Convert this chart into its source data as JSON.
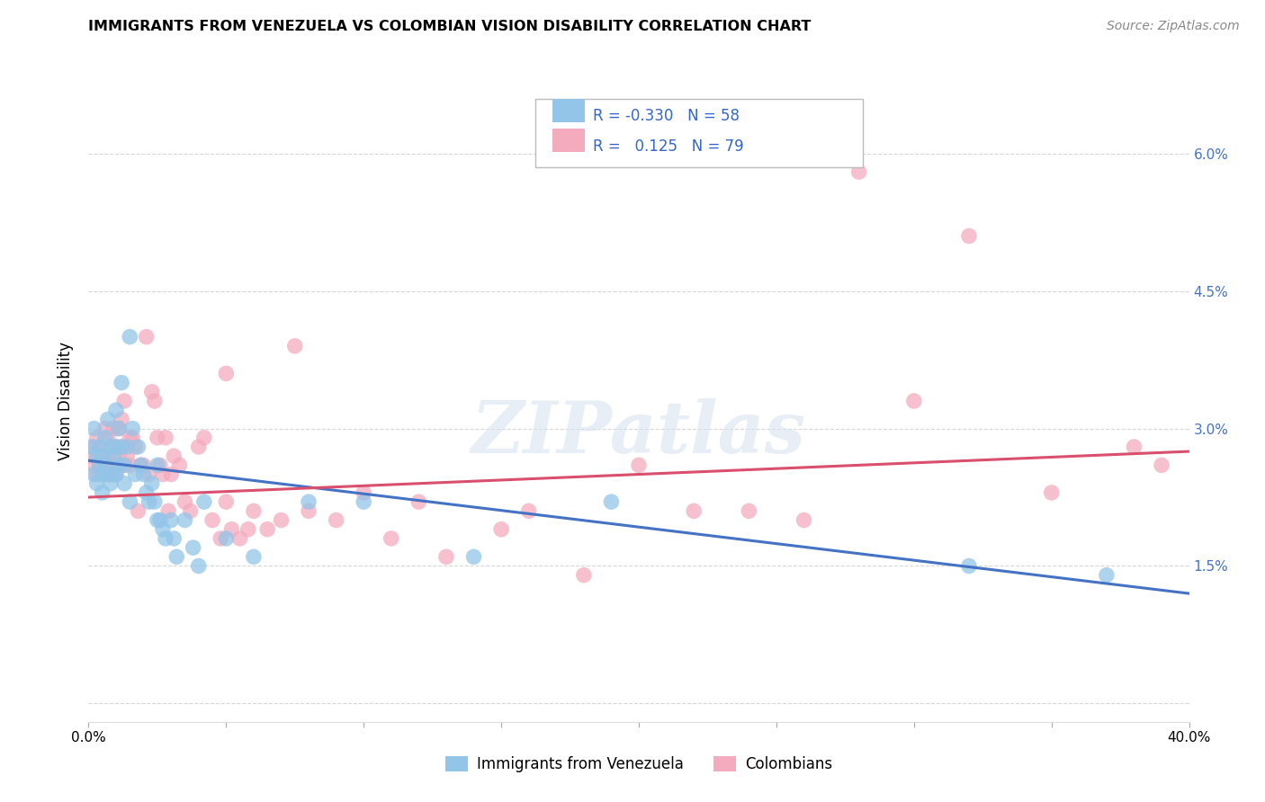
{
  "title": "IMMIGRANTS FROM VENEZUELA VS COLOMBIAN VISION DISABILITY CORRELATION CHART",
  "source": "Source: ZipAtlas.com",
  "ylabel": "Vision Disability",
  "ytick_labels": [
    "",
    "1.5%",
    "3.0%",
    "4.5%",
    "6.0%"
  ],
  "ytick_values": [
    0.0,
    0.015,
    0.03,
    0.045,
    0.06
  ],
  "xlim": [
    0.0,
    0.4
  ],
  "ylim": [
    -0.002,
    0.068
  ],
  "color_blue": "#92C5E8",
  "color_pink": "#F4ABBE",
  "color_blue_line": "#4472C4",
  "color_pink_line": "#D94F6E",
  "background_color": "#FFFFFF",
  "grid_color": "#CCCCCC",
  "watermark_text": "ZIPatlas",
  "venezuela_x": [
    0.001,
    0.002,
    0.002,
    0.003,
    0.003,
    0.004,
    0.004,
    0.005,
    0.005,
    0.005,
    0.006,
    0.006,
    0.007,
    0.007,
    0.008,
    0.008,
    0.009,
    0.009,
    0.01,
    0.01,
    0.01,
    0.011,
    0.011,
    0.012,
    0.012,
    0.013,
    0.013,
    0.014,
    0.015,
    0.015,
    0.016,
    0.017,
    0.018,
    0.019,
    0.02,
    0.021,
    0.022,
    0.023,
    0.024,
    0.025,
    0.025,
    0.026,
    0.027,
    0.028,
    0.03,
    0.031,
    0.032,
    0.035,
    0.038,
    0.04,
    0.042,
    0.05,
    0.06,
    0.08,
    0.1,
    0.14,
    0.19,
    0.32,
    0.37
  ],
  "venezuela_y": [
    0.028,
    0.025,
    0.03,
    0.027,
    0.024,
    0.026,
    0.028,
    0.025,
    0.023,
    0.027,
    0.029,
    0.026,
    0.031,
    0.025,
    0.028,
    0.024,
    0.027,
    0.025,
    0.032,
    0.028,
    0.025,
    0.03,
    0.026,
    0.035,
    0.028,
    0.026,
    0.024,
    0.028,
    0.04,
    0.022,
    0.03,
    0.025,
    0.028,
    0.026,
    0.025,
    0.023,
    0.022,
    0.024,
    0.022,
    0.02,
    0.026,
    0.02,
    0.019,
    0.018,
    0.02,
    0.018,
    0.016,
    0.02,
    0.017,
    0.015,
    0.022,
    0.018,
    0.016,
    0.022,
    0.022,
    0.016,
    0.022,
    0.015,
    0.014
  ],
  "colombian_x": [
    0.001,
    0.002,
    0.002,
    0.003,
    0.003,
    0.004,
    0.004,
    0.005,
    0.005,
    0.006,
    0.006,
    0.007,
    0.007,
    0.008,
    0.008,
    0.009,
    0.009,
    0.01,
    0.01,
    0.011,
    0.011,
    0.012,
    0.012,
    0.013,
    0.013,
    0.014,
    0.015,
    0.015,
    0.016,
    0.017,
    0.018,
    0.019,
    0.02,
    0.021,
    0.022,
    0.023,
    0.024,
    0.025,
    0.026,
    0.027,
    0.028,
    0.029,
    0.03,
    0.031,
    0.033,
    0.035,
    0.037,
    0.04,
    0.042,
    0.045,
    0.05,
    0.06,
    0.07,
    0.08,
    0.09,
    0.1,
    0.12,
    0.15,
    0.18,
    0.22,
    0.26,
    0.28,
    0.3,
    0.32,
    0.35,
    0.38,
    0.39,
    0.05,
    0.075,
    0.13,
    0.16,
    0.2,
    0.24,
    0.055,
    0.065,
    0.11,
    0.048,
    0.052,
    0.058
  ],
  "colombian_y": [
    0.027,
    0.026,
    0.028,
    0.025,
    0.029,
    0.026,
    0.028,
    0.025,
    0.027,
    0.03,
    0.026,
    0.029,
    0.027,
    0.028,
    0.025,
    0.03,
    0.026,
    0.028,
    0.025,
    0.03,
    0.027,
    0.031,
    0.028,
    0.033,
    0.026,
    0.027,
    0.026,
    0.029,
    0.029,
    0.028,
    0.021,
    0.026,
    0.026,
    0.04,
    0.025,
    0.034,
    0.033,
    0.029,
    0.026,
    0.025,
    0.029,
    0.021,
    0.025,
    0.027,
    0.026,
    0.022,
    0.021,
    0.028,
    0.029,
    0.02,
    0.022,
    0.021,
    0.02,
    0.021,
    0.02,
    0.023,
    0.022,
    0.019,
    0.014,
    0.021,
    0.02,
    0.058,
    0.033,
    0.051,
    0.023,
    0.028,
    0.026,
    0.036,
    0.039,
    0.016,
    0.021,
    0.026,
    0.021,
    0.018,
    0.019,
    0.018,
    0.018,
    0.019,
    0.019
  ],
  "blue_line_x": [
    0.0,
    0.4
  ],
  "blue_line_y": [
    0.0265,
    0.012
  ],
  "pink_line_x": [
    0.0,
    0.4
  ],
  "pink_line_y": [
    0.0225,
    0.0275
  ]
}
